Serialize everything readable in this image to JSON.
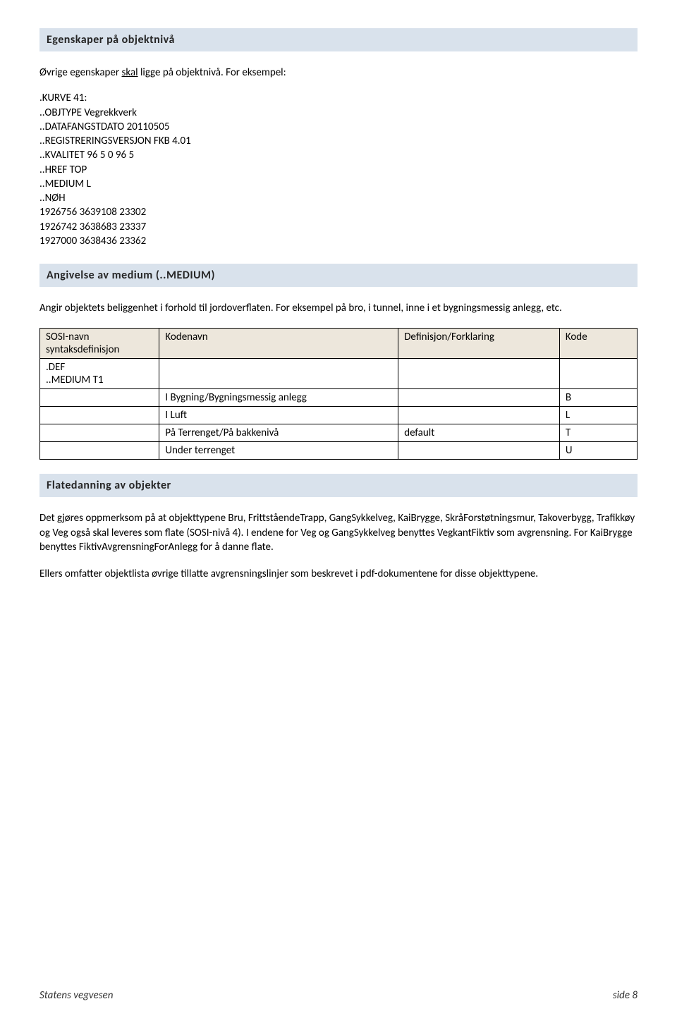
{
  "sections": {
    "s1": {
      "title": "Egenskaper på objektnivå"
    },
    "s2": {
      "title": "Angivelse av medium (..MEDIUM)"
    },
    "s3": {
      "title": "Flatedanning av objekter"
    }
  },
  "intro": {
    "prefix": "Øvrige egenskaper ",
    "underlined": "skal",
    "suffix": " ligge på objektnivå. For eksempel:"
  },
  "code": {
    "l1": ".KURVE 41:",
    "l2": "..OBJTYPE Vegrekkverk",
    "l3": "..DATAFANGSTDATO 20110505",
    "l4": "..REGISTRERINGSVERSJON FKB 4.01",
    "l5": "..KVALITET 96 5 0 96 5",
    "l6": "..HREF TOP",
    "l7": "..MEDIUM L",
    "l8": "..NØH",
    "l9": "1926756 3639108 23302",
    "l10": "1926742 3638683 23337",
    "l11": "1927000 3638436 23362"
  },
  "medium_desc": "Angir objektets beliggenhet i forhold til jordoverflaten. For eksempel på bro, i tunnel, inne i et bygningsmessig anlegg, etc.",
  "table": {
    "headers": {
      "h1a": "SOSI-navn",
      "h1b": "syntaksdefinisjon",
      "h2": "Kodenavn",
      "h3": "Definisjon/Forklaring",
      "h4": "Kode"
    },
    "row1_c1a": ".DEF",
    "row1_c1b": "..MEDIUM T1",
    "r2_c2": "I Bygning/Bygningsmessig anlegg",
    "r2_c4": "B",
    "r3_c2": "I Luft",
    "r3_c4": "L",
    "r4_c2": "På Terrenget/På bakkenivå",
    "r4_c3": "default",
    "r4_c4": "T",
    "r5_c2": "Under terrenget",
    "r5_c4": "U"
  },
  "flate": {
    "p1": "Det gjøres oppmerksom på at objekttypene Bru, FrittståendeTrapp, GangSykkelveg, KaiBrygge, SkråForstøtningsmur, Takoverbygg, Trafikkøy og Veg også skal leveres som flate (SOSI-nivå 4). I endene for Veg og GangSykkelveg benyttes VegkantFiktiv som avgrensning. For KaiBrygge benyttes FiktivAvgrensningForAnlegg for å danne flate.",
    "p2": "Ellers omfatter objektlista øvrige tillatte avgrensningslinjer som beskrevet i pdf-dokumentene for disse objekttypene."
  },
  "footer": {
    "left": "Statens vegvesen",
    "right": "side 8"
  },
  "colors": {
    "heading_bg": "#d9e2ec",
    "table_header_bg": "#ede7dc",
    "border": "#000000",
    "text": "#000000",
    "background": "#ffffff"
  }
}
